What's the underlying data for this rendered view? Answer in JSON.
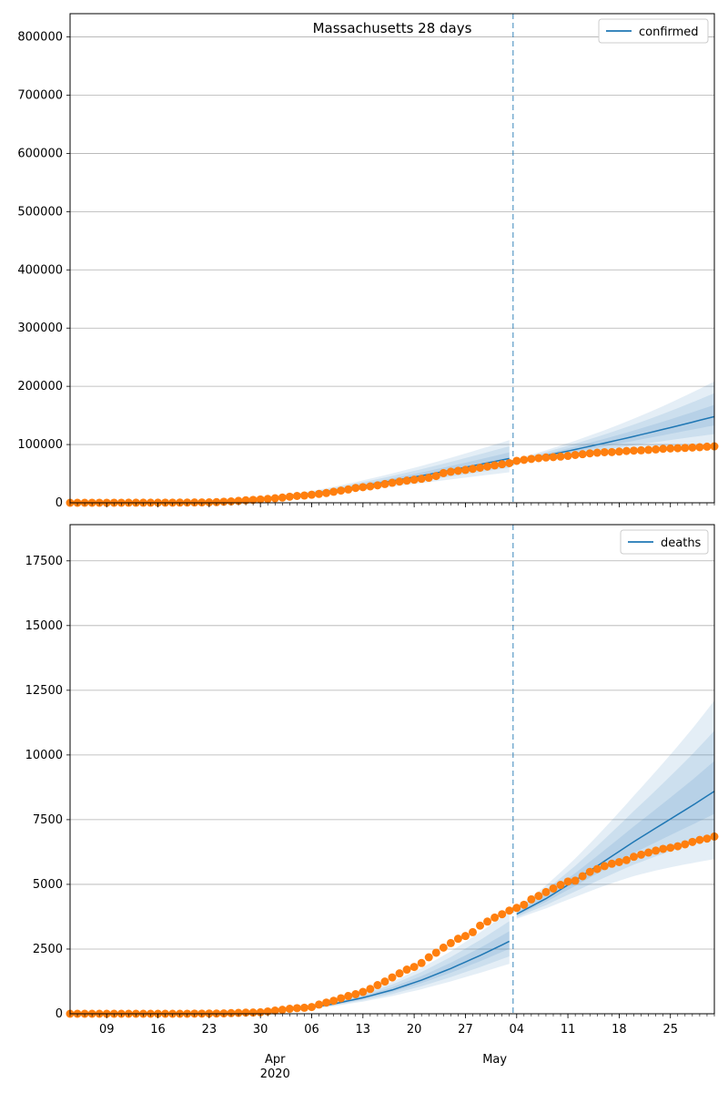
{
  "chart_data": [
    {
      "type": "line",
      "title": "Massachusetts 28 days",
      "legend": {
        "label": "confirmed",
        "position": "top-right"
      },
      "ylim": [
        0,
        840000
      ],
      "yticks": [
        0,
        100000,
        200000,
        300000,
        400000,
        500000,
        600000,
        700000,
        800000
      ],
      "grid": true,
      "split_date": "2020-05-03",
      "observed": [
        [
          "2020-03-04",
          2
        ],
        [
          "2020-03-05",
          8
        ],
        [
          "2020-03-06",
          8
        ],
        [
          "2020-03-07",
          13
        ],
        [
          "2020-03-08",
          28
        ],
        [
          "2020-03-09",
          41
        ],
        [
          "2020-03-10",
          92
        ],
        [
          "2020-03-11",
          95
        ],
        [
          "2020-03-12",
          108
        ],
        [
          "2020-03-13",
          123
        ],
        [
          "2020-03-14",
          138
        ],
        [
          "2020-03-15",
          164
        ],
        [
          "2020-03-16",
          197
        ],
        [
          "2020-03-17",
          218
        ],
        [
          "2020-03-18",
          256
        ],
        [
          "2020-03-19",
          328
        ],
        [
          "2020-03-20",
          413
        ],
        [
          "2020-03-21",
          525
        ],
        [
          "2020-03-22",
          646
        ],
        [
          "2020-03-23",
          777
        ],
        [
          "2020-03-24",
          1159
        ],
        [
          "2020-03-25",
          1838
        ],
        [
          "2020-03-26",
          2417
        ],
        [
          "2020-03-27",
          3240
        ],
        [
          "2020-03-28",
          4257
        ],
        [
          "2020-03-29",
          4955
        ],
        [
          "2020-03-30",
          5752
        ],
        [
          "2020-03-31",
          6620
        ],
        [
          "2020-04-01",
          7738
        ],
        [
          "2020-04-02",
          8966
        ],
        [
          "2020-04-03",
          10402
        ],
        [
          "2020-04-04",
          11736
        ],
        [
          "2020-04-05",
          12500
        ],
        [
          "2020-04-06",
          13837
        ],
        [
          "2020-04-07",
          15202
        ],
        [
          "2020-04-08",
          16790
        ],
        [
          "2020-04-09",
          18941
        ],
        [
          "2020-04-10",
          20974
        ],
        [
          "2020-04-11",
          22860
        ],
        [
          "2020-04-12",
          25475
        ],
        [
          "2020-04-13",
          26867
        ],
        [
          "2020-04-14",
          28163
        ],
        [
          "2020-04-15",
          29918
        ],
        [
          "2020-04-16",
          32181
        ],
        [
          "2020-04-17",
          34402
        ],
        [
          "2020-04-18",
          36372
        ],
        [
          "2020-04-19",
          38077
        ],
        [
          "2020-04-20",
          39643
        ],
        [
          "2020-04-21",
          41199
        ],
        [
          "2020-04-22",
          42944
        ],
        [
          "2020-04-23",
          46023
        ],
        [
          "2020-04-24",
          50969
        ],
        [
          "2020-04-25",
          53348
        ],
        [
          "2020-04-26",
          54938
        ],
        [
          "2020-04-27",
          56462
        ],
        [
          "2020-04-28",
          58302
        ],
        [
          "2020-04-29",
          60265
        ],
        [
          "2020-04-30",
          62205
        ],
        [
          "2020-05-01",
          64311
        ],
        [
          "2020-05-02",
          66263
        ],
        [
          "2020-05-03",
          68087
        ],
        [
          "2020-05-04",
          72025
        ],
        [
          "2020-05-05",
          73721
        ],
        [
          "2020-05-06",
          75333
        ],
        [
          "2020-05-07",
          76743
        ],
        [
          "2020-05-08",
          77793
        ],
        [
          "2020-05-09",
          78462
        ],
        [
          "2020-05-10",
          79332
        ],
        [
          "2020-05-11",
          80497
        ],
        [
          "2020-05-12",
          82182
        ],
        [
          "2020-05-13",
          83421
        ],
        [
          "2020-05-14",
          84933
        ],
        [
          "2020-05-15",
          86010
        ],
        [
          "2020-05-16",
          86885
        ],
        [
          "2020-05-17",
          87052
        ],
        [
          "2020-05-18",
          87925
        ],
        [
          "2020-05-19",
          88970
        ],
        [
          "2020-05-20",
          89624
        ],
        [
          "2020-05-21",
          90084
        ],
        [
          "2020-05-22",
          90889
        ],
        [
          "2020-05-23",
          91662
        ],
        [
          "2020-05-24",
          92675
        ],
        [
          "2020-05-25",
          93271
        ],
        [
          "2020-05-26",
          93693
        ],
        [
          "2020-05-27",
          94220
        ],
        [
          "2020-05-28",
          94895
        ],
        [
          "2020-05-29",
          95512
        ],
        [
          "2020-05-30",
          96301
        ],
        [
          "2020-05-31",
          96965
        ]
      ],
      "forecast_past": [
        [
          "2020-03-04",
          0
        ],
        [
          "2020-03-08",
          50
        ],
        [
          "2020-03-12",
          150
        ],
        [
          "2020-03-16",
          400
        ],
        [
          "2020-03-20",
          1000
        ],
        [
          "2020-03-24",
          2200
        ],
        [
          "2020-03-28",
          4500
        ],
        [
          "2020-04-01",
          8500
        ],
        [
          "2020-04-05",
          14000
        ],
        [
          "2020-04-09",
          21000
        ],
        [
          "2020-04-13",
          29000
        ],
        [
          "2020-04-17",
          37500
        ],
        [
          "2020-04-21",
          46500
        ],
        [
          "2020-04-25",
          56000
        ],
        [
          "2020-04-29",
          66000
        ],
        [
          "2020-05-03",
          76000
        ]
      ],
      "forecast_future": [
        [
          "2020-05-04",
          71000
        ],
        [
          "2020-05-08",
          81000
        ],
        [
          "2020-05-12",
          91500
        ],
        [
          "2020-05-16",
          102500
        ],
        [
          "2020-05-20",
          114000
        ],
        [
          "2020-05-24",
          126000
        ],
        [
          "2020-05-28",
          138500
        ],
        [
          "2020-05-31",
          148000
        ]
      ]
    },
    {
      "type": "line",
      "legend": {
        "label": "deaths",
        "position": "top-right"
      },
      "ylim": [
        0,
        18900
      ],
      "yticks": [
        0,
        2500,
        5000,
        7500,
        10000,
        12500,
        15000,
        17500
      ],
      "grid": true,
      "split_date": "2020-05-03",
      "xtick_labels": [
        "09",
        "16",
        "23",
        "30",
        "06",
        "13",
        "20",
        "27",
        "04",
        "11",
        "18",
        "25"
      ],
      "xtick_dates": [
        "2020-03-09",
        "2020-03-16",
        "2020-03-23",
        "2020-03-30",
        "2020-04-06",
        "2020-04-13",
        "2020-04-20",
        "2020-04-27",
        "2020-05-04",
        "2020-05-11",
        "2020-05-18",
        "2020-05-25"
      ],
      "month_labels": [
        {
          "date": "2020-04-01",
          "label": "Apr",
          "year": "2020"
        },
        {
          "date": "2020-05-01",
          "label": "May",
          "year": ""
        }
      ],
      "observed": [
        [
          "2020-03-04",
          0
        ],
        [
          "2020-03-05",
          0
        ],
        [
          "2020-03-06",
          0
        ],
        [
          "2020-03-07",
          0
        ],
        [
          "2020-03-08",
          0
        ],
        [
          "2020-03-09",
          0
        ],
        [
          "2020-03-10",
          0
        ],
        [
          "2020-03-11",
          0
        ],
        [
          "2020-03-12",
          0
        ],
        [
          "2020-03-13",
          0
        ],
        [
          "2020-03-14",
          0
        ],
        [
          "2020-03-15",
          0
        ],
        [
          "2020-03-16",
          0
        ],
        [
          "2020-03-17",
          0
        ],
        [
          "2020-03-18",
          0
        ],
        [
          "2020-03-19",
          0
        ],
        [
          "2020-03-20",
          1
        ],
        [
          "2020-03-21",
          5
        ],
        [
          "2020-03-22",
          5
        ],
        [
          "2020-03-23",
          9
        ],
        [
          "2020-03-24",
          11
        ],
        [
          "2020-03-25",
          15
        ],
        [
          "2020-03-26",
          25
        ],
        [
          "2020-03-27",
          35
        ],
        [
          "2020-03-28",
          44
        ],
        [
          "2020-03-29",
          48
        ],
        [
          "2020-03-30",
          56
        ],
        [
          "2020-03-31",
          89
        ],
        [
          "2020-04-01",
          122
        ],
        [
          "2020-04-02",
          154
        ],
        [
          "2020-04-03",
          192
        ],
        [
          "2020-04-04",
          216
        ],
        [
          "2020-04-05",
          231
        ],
        [
          "2020-04-06",
          260
        ],
        [
          "2020-04-07",
          356
        ],
        [
          "2020-04-08",
          433
        ],
        [
          "2020-04-09",
          503
        ],
        [
          "2020-04-10",
          599
        ],
        [
          "2020-04-11",
          686
        ],
        [
          "2020-04-12",
          756
        ],
        [
          "2020-04-13",
          844
        ],
        [
          "2020-04-14",
          957
        ],
        [
          "2020-04-15",
          1108
        ],
        [
          "2020-04-16",
          1245
        ],
        [
          "2020-04-17",
          1404
        ],
        [
          "2020-04-18",
          1560
        ],
        [
          "2020-04-19",
          1706
        ],
        [
          "2020-04-20",
          1809
        ],
        [
          "2020-04-21",
          1961
        ],
        [
          "2020-04-22",
          2182
        ],
        [
          "2020-04-23",
          2360
        ],
        [
          "2020-04-24",
          2556
        ],
        [
          "2020-04-25",
          2730
        ],
        [
          "2020-04-26",
          2899
        ],
        [
          "2020-04-27",
          3003
        ],
        [
          "2020-04-28",
          3153
        ],
        [
          "2020-04-29",
          3405
        ],
        [
          "2020-04-30",
          3562
        ],
        [
          "2020-05-01",
          3716
        ],
        [
          "2020-05-02",
          3846
        ],
        [
          "2020-05-03",
          3986
        ],
        [
          "2020-05-04",
          4090
        ],
        [
          "2020-05-05",
          4212
        ],
        [
          "2020-05-06",
          4420
        ],
        [
          "2020-05-07",
          4552
        ],
        [
          "2020-05-08",
          4702
        ],
        [
          "2020-05-09",
          4840
        ],
        [
          "2020-05-10",
          4979
        ],
        [
          "2020-05-11",
          5108
        ],
        [
          "2020-05-12",
          5141
        ],
        [
          "2020-05-13",
          5315
        ],
        [
          "2020-05-14",
          5482
        ],
        [
          "2020-05-15",
          5592
        ],
        [
          "2020-05-16",
          5705
        ],
        [
          "2020-05-17",
          5797
        ],
        [
          "2020-05-18",
          5862
        ],
        [
          "2020-05-19",
          5938
        ],
        [
          "2020-05-20",
          6066
        ],
        [
          "2020-05-21",
          6148
        ],
        [
          "2020-05-22",
          6228
        ],
        [
          "2020-05-23",
          6304
        ],
        [
          "2020-05-24",
          6372
        ],
        [
          "2020-05-25",
          6416
        ],
        [
          "2020-05-26",
          6473
        ],
        [
          "2020-05-27",
          6547
        ],
        [
          "2020-05-28",
          6640
        ],
        [
          "2020-05-29",
          6718
        ],
        [
          "2020-05-30",
          6768
        ],
        [
          "2020-05-31",
          6848
        ]
      ],
      "forecast_past": [
        [
          "2020-03-04",
          0
        ],
        [
          "2020-03-12",
          0
        ],
        [
          "2020-03-20",
          5
        ],
        [
          "2020-03-24",
          15
        ],
        [
          "2020-03-28",
          40
        ],
        [
          "2020-04-01",
          95
        ],
        [
          "2020-04-05",
          200
        ],
        [
          "2020-04-09",
          380
        ],
        [
          "2020-04-13",
          620
        ],
        [
          "2020-04-17",
          920
        ],
        [
          "2020-04-21",
          1300
        ],
        [
          "2020-04-25",
          1750
        ],
        [
          "2020-04-29",
          2250
        ],
        [
          "2020-05-03",
          2800
        ]
      ],
      "forecast_future": [
        [
          "2020-05-04",
          3850
        ],
        [
          "2020-05-08",
          4450
        ],
        [
          "2020-05-12",
          5150
        ],
        [
          "2020-05-16",
          5900
        ],
        [
          "2020-05-20",
          6650
        ],
        [
          "2020-05-24",
          7350
        ],
        [
          "2020-05-28",
          8050
        ],
        [
          "2020-05-31",
          8600
        ]
      ]
    }
  ],
  "colors": {
    "forecast_line": "#1f77b4",
    "observed_points": "#ff7f0e",
    "band": "#1f77b4",
    "grid": "#b0b0b0",
    "split_line": "#1f77b4"
  }
}
